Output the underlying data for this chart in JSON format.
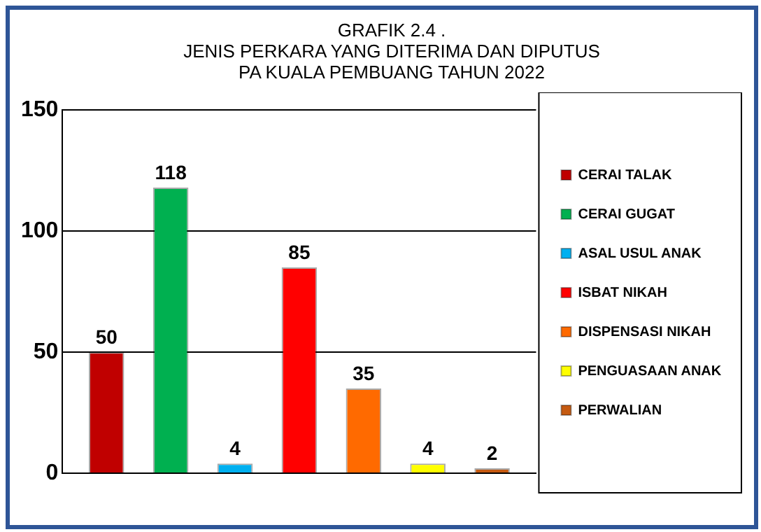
{
  "chart_data": {
    "type": "bar",
    "title": "GRAFIK 2.4 .\nJENIS PERKARA YANG DITERIMA DAN DIPUTUS\nPA KUALA PEMBUANG TAHUN 2022",
    "categories": [
      null
    ],
    "series": [
      {
        "name": "CERAI TALAK",
        "color": "#c00000",
        "values": [
          50
        ]
      },
      {
        "name": "CERAI GUGAT",
        "color": "#00b050",
        "values": [
          118
        ]
      },
      {
        "name": "ASAL USUL ANAK",
        "color": "#00b0f0",
        "values": [
          4
        ]
      },
      {
        "name": "ISBAT NIKAH",
        "color": "#ff0000",
        "values": [
          85
        ]
      },
      {
        "name": "DISPENSASI NIKAH",
        "color": "#ff6a00",
        "values": [
          35
        ]
      },
      {
        "name": "PENGUASAAN ANAK",
        "color": "#ffff00",
        "values": [
          4
        ]
      },
      {
        "name": "PERWALIAN",
        "color": "#c55a11",
        "values": [
          2
        ]
      }
    ],
    "ylim": [
      0,
      150
    ],
    "yticks": [
      0,
      50,
      100,
      150
    ],
    "grid": "y",
    "legend": "right",
    "tick_labels": "y",
    "data_labels": true
  }
}
